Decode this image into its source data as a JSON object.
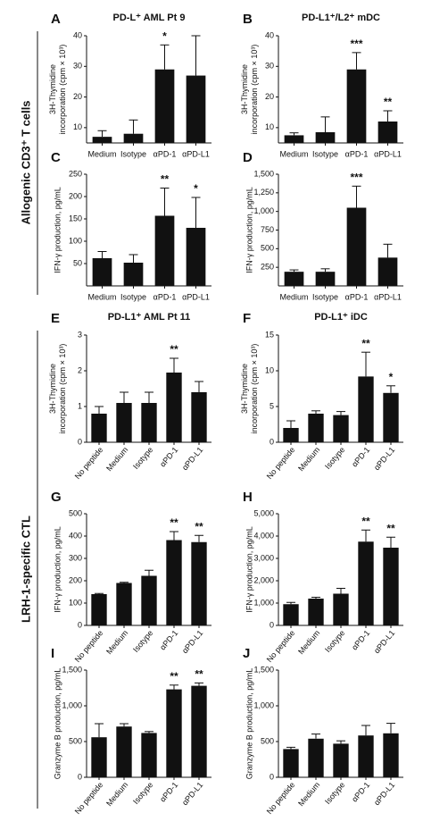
{
  "group_labels": [
    "Allogenic CD3⁺ T cells",
    "LRH-1-specific CTL"
  ],
  "chart_data": [
    {
      "type": "bar",
      "label": "A",
      "title": "PD-L⁺ AML Pt 9",
      "ylabel": [
        "3H-Thymidine",
        "incorporation (cpm × 10³)"
      ],
      "categories": [
        "Medium",
        "Isotype",
        "αPD-1",
        "αPD-L1"
      ],
      "values": [
        7,
        8,
        29,
        27
      ],
      "errors": [
        2,
        4.5,
        8,
        13
      ],
      "significance": [
        null,
        null,
        "*",
        null
      ],
      "ylim": [
        5,
        40
      ],
      "yticks": [
        10,
        20,
        30,
        40
      ],
      "color": "#111111",
      "rotated_labels": false
    },
    {
      "type": "bar",
      "label": "B",
      "title": "PD-L1⁺/L2⁺ mDC",
      "ylabel": [
        "3H-Thymidine",
        "incorporation (cpm × 10³)"
      ],
      "categories": [
        "Medium",
        "Isotype",
        "αPD-1",
        "αPD-L1"
      ],
      "values": [
        7.5,
        8.5,
        29,
        12
      ],
      "errors": [
        0.8,
        5,
        5.5,
        3.5
      ],
      "significance": [
        null,
        null,
        "***",
        "**"
      ],
      "ylim": [
        5,
        40
      ],
      "yticks": [
        10,
        20,
        30,
        40
      ],
      "color": "#111111",
      "rotated_labels": false
    },
    {
      "type": "bar",
      "label": "C",
      "ylabel": [
        "IFN-γ production, pg/mL"
      ],
      "categories": [
        "Medium",
        "Isotype",
        "αPD-1",
        "αPD-L1"
      ],
      "values": [
        62,
        52,
        157,
        130
      ],
      "errors": [
        15,
        18,
        62,
        68
      ],
      "significance": [
        null,
        null,
        "**",
        "*"
      ],
      "ylim": [
        0,
        250
      ],
      "yticks": [
        50,
        100,
        150,
        200,
        250
      ],
      "color": "#111111",
      "rotated_labels": false
    },
    {
      "type": "bar",
      "label": "D",
      "ylabel": [
        "IFN-γ production, pg/mL"
      ],
      "categories": [
        "Medium",
        "Isotype",
        "αPD-1",
        "αPD-L1"
      ],
      "values": [
        190,
        190,
        1050,
        380
      ],
      "errors": [
        25,
        40,
        290,
        180
      ],
      "significance": [
        null,
        null,
        "***",
        null
      ],
      "ylim": [
        0,
        1500
      ],
      "yticks": [
        250,
        500,
        750,
        {
          "value": 1000,
          "label": "1,000"
        },
        {
          "value": 1250,
          "label": "1,250"
        },
        {
          "value": 1500,
          "label": "1,500"
        }
      ],
      "color": "#111111",
      "rotated_labels": false
    },
    {
      "type": "bar",
      "label": "E",
      "title": "PD-L1⁺ AML Pt 11",
      "ylabel": [
        "3H-Thymidine",
        "incorporation (cpm × 10³)"
      ],
      "categories": [
        "No peptide",
        "Medium",
        "Isotype",
        "αPD-1",
        "αPD-L1"
      ],
      "values": [
        0.8,
        1.1,
        1.1,
        1.95,
        1.4
      ],
      "errors": [
        0.2,
        0.3,
        0.3,
        0.4,
        0.3
      ],
      "significance": [
        null,
        null,
        null,
        "**",
        null
      ],
      "ylim": [
        0,
        3
      ],
      "yticks": [
        0,
        1,
        2,
        3
      ],
      "color": "#111111",
      "rotated_labels": true
    },
    {
      "type": "bar",
      "label": "F",
      "title": "PD-L1⁺ iDC",
      "ylabel": [
        "3H-Thymidine",
        "incorporation (cpm × 10³)"
      ],
      "categories": [
        "No peptide",
        "Medium",
        "Isotype",
        "αPD-1",
        "αPD-L1"
      ],
      "values": [
        2,
        4,
        3.8,
        9.2,
        6.9
      ],
      "errors": [
        1,
        0.4,
        0.5,
        3.4,
        1
      ],
      "significance": [
        null,
        null,
        null,
        "**",
        "*"
      ],
      "ylim": [
        0,
        15
      ],
      "yticks": [
        0,
        5,
        10,
        15
      ],
      "color": "#111111",
      "rotated_labels": true
    },
    {
      "type": "bar",
      "label": "G",
      "ylabel": [
        "IFN-γ production, pg/mL"
      ],
      "categories": [
        "No peptide",
        "Medium",
        "Isotype",
        "αPD-1",
        "αPD-L1"
      ],
      "values": [
        140,
        190,
        222,
        382,
        373
      ],
      "errors": [
        3,
        3,
        25,
        38,
        30
      ],
      "significance": [
        null,
        null,
        null,
        "**",
        "**"
      ],
      "ylim": [
        0,
        500
      ],
      "yticks": [
        0,
        100,
        200,
        300,
        400,
        500
      ],
      "color": "#111111",
      "rotated_labels": true
    },
    {
      "type": "bar",
      "label": "H",
      "ylabel": [
        "IFN-γ production, pg/mL"
      ],
      "categories": [
        "No peptide",
        "Medium",
        "Isotype",
        "αPD-1",
        "αPD-L1"
      ],
      "values": [
        950,
        1200,
        1420,
        3750,
        3480
      ],
      "errors": [
        80,
        60,
        240,
        520,
        470
      ],
      "significance": [
        null,
        null,
        null,
        "**",
        "**"
      ],
      "ylim": [
        0,
        5000
      ],
      "yticks": [
        0,
        {
          "value": 1000,
          "label": "1,000"
        },
        {
          "value": 2000,
          "label": "2,000"
        },
        {
          "value": 3000,
          "label": "3,000"
        },
        {
          "value": 4000,
          "label": "4,000"
        },
        {
          "value": 5000,
          "label": "5,000"
        }
      ],
      "color": "#111111",
      "rotated_labels": true
    },
    {
      "type": "bar",
      "label": "I",
      "ylabel": [
        "Granzyme B production, pg/mL"
      ],
      "categories": [
        "No peptide",
        "Medium",
        "Isotype",
        "αPD-1",
        "αPD-L1"
      ],
      "values": [
        560,
        710,
        620,
        1230,
        1280
      ],
      "errors": [
        190,
        40,
        20,
        60,
        40
      ],
      "significance": [
        null,
        null,
        null,
        "**",
        "**"
      ],
      "ylim": [
        0,
        1500
      ],
      "yticks": [
        0,
        500,
        {
          "value": 1000,
          "label": "1,000"
        },
        {
          "value": 1500,
          "label": "1,500"
        }
      ],
      "color": "#111111",
      "rotated_labels": true
    },
    {
      "type": "bar",
      "label": "J",
      "ylabel": [
        "Granzyme B production, pg/mL"
      ],
      "categories": [
        "No peptide",
        "Medium",
        "Isotype",
        "αPD-1",
        "αPD-L1"
      ],
      "values": [
        395,
        540,
        470,
        585,
        615
      ],
      "errors": [
        25,
        65,
        40,
        140,
        140
      ],
      "significance": [
        null,
        null,
        null,
        null,
        null
      ],
      "ylim": [
        0,
        1500
      ],
      "yticks": [
        0,
        500,
        {
          "value": 1000,
          "label": "1,000"
        },
        {
          "value": 1500,
          "label": "1,500"
        }
      ],
      "color": "#111111",
      "rotated_labels": true
    }
  ]
}
